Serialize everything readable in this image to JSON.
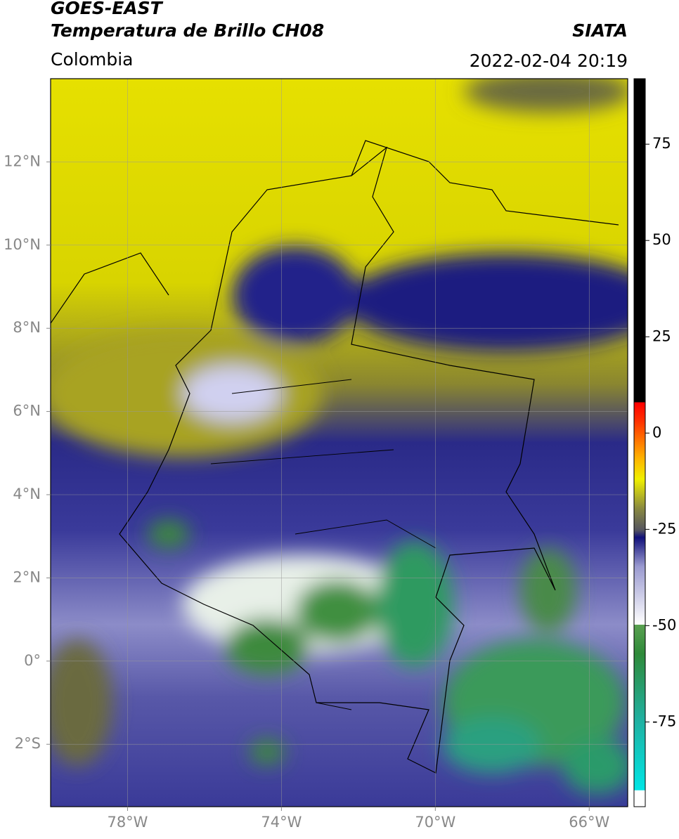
{
  "chart_data": {
    "type": "map",
    "title": "GOES-EAST",
    "subtitle": "Temperatura de Brillo CH08",
    "region": "Colombia",
    "source": "SIATA",
    "datetime": "2022-02-04 20:19",
    "xlim": [
      -80,
      -65
    ],
    "ylim": [
      -3.5,
      14
    ],
    "xticks": [
      {
        "value": -78,
        "label": "78°W"
      },
      {
        "value": -74,
        "label": "74°W"
      },
      {
        "value": -70,
        "label": "70°W"
      },
      {
        "value": -66,
        "label": "66°W"
      }
    ],
    "yticks": [
      {
        "value": 12,
        "label": "12°N"
      },
      {
        "value": 10,
        "label": "10°N"
      },
      {
        "value": 8,
        "label": "8°N"
      },
      {
        "value": 6,
        "label": "6°N"
      },
      {
        "value": 4,
        "label": "4°N"
      },
      {
        "value": 2,
        "label": "2°N"
      },
      {
        "value": 0,
        "label": "0°"
      },
      {
        "value": -2,
        "label": "2°S"
      }
    ],
    "grid": true,
    "clim": [
      -97,
      92
    ],
    "cticks": [
      75,
      50,
      25,
      0,
      -25,
      -50,
      -75
    ]
  }
}
